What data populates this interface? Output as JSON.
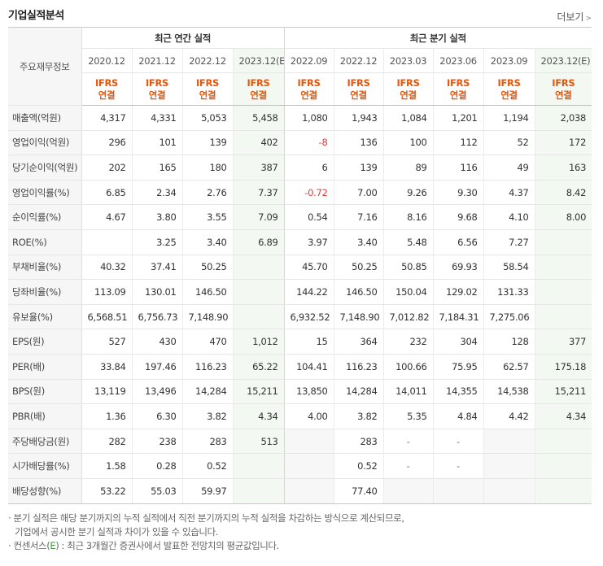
{
  "title": "기업실적분석",
  "more_label": "더보기",
  "table": {
    "corner_label": "주요재무정보",
    "groups": {
      "annual": "최근 연간 실적",
      "quarterly": "최근 분기 실적"
    },
    "periods": [
      "2020.12",
      "2021.12",
      "2022.12",
      "2023.12(E)",
      "2022.09",
      "2022.12",
      "2023.03",
      "2023.06",
      "2023.09",
      "2023.12(E)"
    ],
    "ifrs_top": "IFRS",
    "ifrs_bottom": "연결",
    "rows": [
      {
        "label": "매출액(억원)",
        "values": [
          "4,317",
          "4,331",
          "5,053",
          "5,458",
          "1,080",
          "1,943",
          "1,084",
          "1,201",
          "1,194",
          "2,038"
        ]
      },
      {
        "label": "영업이익(억원)",
        "values": [
          "296",
          "101",
          "139",
          "402",
          "-8",
          "136",
          "100",
          "112",
          "52",
          "172"
        ]
      },
      {
        "label": "당기순이익(억원)",
        "values": [
          "202",
          "165",
          "180",
          "387",
          "6",
          "139",
          "89",
          "116",
          "49",
          "163"
        ]
      },
      {
        "label": "영업이익률(%)",
        "values": [
          "6.85",
          "2.34",
          "2.76",
          "7.37",
          "-0.72",
          "7.00",
          "9.26",
          "9.30",
          "4.37",
          "8.42"
        ]
      },
      {
        "label": "순이익률(%)",
        "values": [
          "4.67",
          "3.80",
          "3.55",
          "7.09",
          "0.54",
          "7.16",
          "8.16",
          "9.68",
          "4.10",
          "8.00"
        ]
      },
      {
        "label": "ROE(%)",
        "values": [
          "",
          "3.25",
          "3.40",
          "6.89",
          "3.97",
          "3.40",
          "5.48",
          "6.56",
          "7.27",
          ""
        ]
      },
      {
        "label": "부채비율(%)",
        "values": [
          "40.32",
          "37.41",
          "50.25",
          "",
          "45.70",
          "50.25",
          "50.85",
          "69.93",
          "58.54",
          ""
        ]
      },
      {
        "label": "당좌비율(%)",
        "values": [
          "113.09",
          "130.01",
          "146.50",
          "",
          "144.22",
          "146.50",
          "150.04",
          "129.02",
          "131.33",
          ""
        ]
      },
      {
        "label": "유보율(%)",
        "values": [
          "6,568.51",
          "6,756.73",
          "7,148.90",
          "",
          "6,932.52",
          "7,148.90",
          "7,012.82",
          "7,184.31",
          "7,275.06",
          ""
        ]
      },
      {
        "label": "EPS(원)",
        "values": [
          "527",
          "430",
          "470",
          "1,012",
          "15",
          "364",
          "232",
          "304",
          "128",
          "377"
        ]
      },
      {
        "label": "PER(배)",
        "values": [
          "33.84",
          "197.46",
          "116.23",
          "65.22",
          "104.41",
          "116.23",
          "100.66",
          "75.95",
          "62.57",
          "175.18"
        ]
      },
      {
        "label": "BPS(원)",
        "values": [
          "13,119",
          "13,496",
          "14,284",
          "15,211",
          "13,850",
          "14,284",
          "14,011",
          "14,355",
          "14,538",
          "15,211"
        ]
      },
      {
        "label": "PBR(배)",
        "values": [
          "1.36",
          "6.30",
          "3.82",
          "4.34",
          "4.00",
          "3.82",
          "5.35",
          "4.84",
          "4.42",
          "4.34"
        ]
      },
      {
        "label": "주당배당금(원)",
        "values": [
          "282",
          "238",
          "283",
          "513",
          "",
          "283",
          "-",
          "-",
          "",
          ""
        ]
      },
      {
        "label": "시가배당률(%)",
        "values": [
          "1.58",
          "0.28",
          "0.52",
          "",
          "",
          "0.52",
          "-",
          "-",
          "",
          ""
        ]
      },
      {
        "label": "배당성향(%)",
        "values": [
          "53.22",
          "55.03",
          "59.97",
          "",
          "",
          "77.40",
          "",
          "",
          "",
          ""
        ]
      }
    ]
  },
  "notes": {
    "line1": "· 분기 실적은 해당 분기까지의 누적 실적에서 직전 분기까지의 누적 실적을 차감하는 방식으로 계산되므로,",
    "line2": "기업에서 공시한 분기 실적과 차이가 있을 수 있습니다.",
    "line3_prefix": "· 컨센서스(",
    "line3_e": "E",
    "line3_suffix": ") : 최근 3개월간 증권사에서 발표한 전망치의 평균값입니다."
  },
  "colors": {
    "ifrs": "#e8560a",
    "negative": "#e03a3a",
    "estimate_bg": "#f3f9f2",
    "consensus_e": "#3a9a3a"
  }
}
